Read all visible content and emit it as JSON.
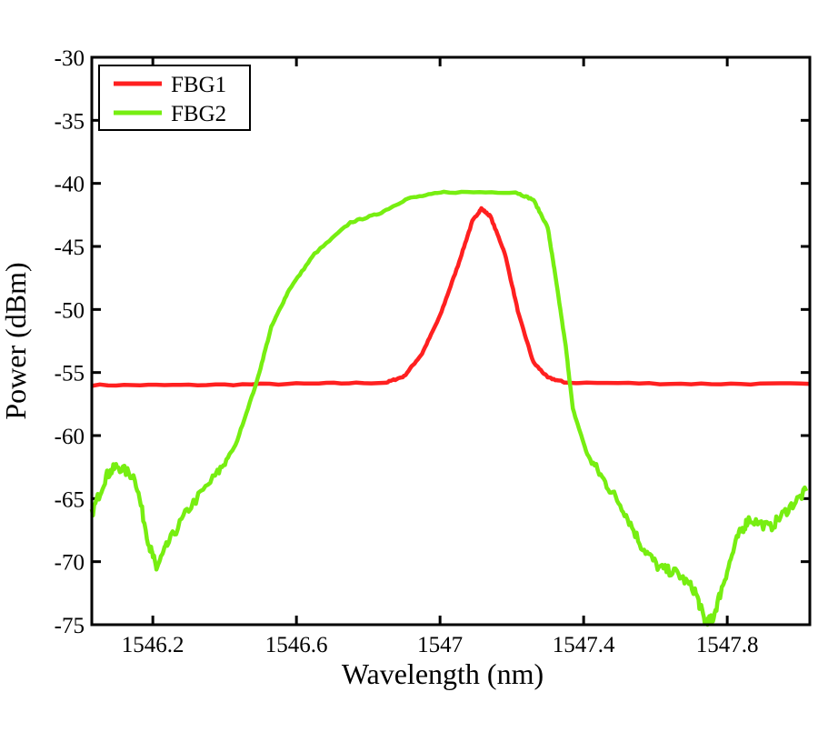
{
  "chart_data": {
    "type": "line",
    "title": "",
    "xlabel": "Wavelength (nm)",
    "ylabel": "Power (dBm)",
    "xlim": [
      1546.03,
      1548.03
    ],
    "ylim": [
      -75,
      -30
    ],
    "xticks": [
      1546.2,
      1546.6,
      1547,
      1547.4,
      1547.8
    ],
    "xtick_labels": [
      "1546.2",
      "1546.6",
      "1547",
      "1547.4",
      "1547.8"
    ],
    "yticks": [
      -30,
      -35,
      -40,
      -45,
      -50,
      -55,
      -60,
      -65,
      -70,
      -75
    ],
    "ytick_labels": [
      "-30",
      "-35",
      "-40",
      "-45",
      "-50",
      "-55",
      "-60",
      "-65",
      "-70",
      "-75"
    ],
    "grid": false,
    "legend_position": "top-left",
    "series": [
      {
        "name": "FBG1",
        "color": "#ff2020",
        "x": [
          1546.03,
          1546.3,
          1546.6,
          1546.85,
          1546.9,
          1546.95,
          1547.0,
          1547.05,
          1547.09,
          1547.115,
          1547.14,
          1547.18,
          1547.22,
          1547.26,
          1547.3,
          1547.35,
          1547.7,
          1548.03
        ],
        "y": [
          -56.0,
          -56.0,
          -55.9,
          -55.8,
          -55.3,
          -53.5,
          -50.5,
          -46.5,
          -43.0,
          -42.0,
          -42.6,
          -45.5,
          -50.5,
          -54.2,
          -55.4,
          -55.8,
          -55.9,
          -55.9
        ]
      },
      {
        "name": "FBG2",
        "color": "#77ee11",
        "x": [
          1546.03,
          1546.07,
          1546.1,
          1546.15,
          1546.19,
          1546.21,
          1546.24,
          1546.3,
          1546.38,
          1546.43,
          1546.49,
          1546.53,
          1546.58,
          1546.65,
          1546.75,
          1546.83,
          1546.91,
          1547.01,
          1547.21,
          1547.26,
          1547.3,
          1547.32,
          1547.35,
          1547.37,
          1547.41,
          1547.46,
          1547.51,
          1547.56,
          1547.61,
          1547.66,
          1547.71,
          1547.74,
          1547.76,
          1547.79,
          1547.83,
          1547.86,
          1547.92,
          1547.97,
          1548.02
        ],
        "y": [
          -66.2,
          -63.2,
          -62.4,
          -63.3,
          -68.7,
          -70.5,
          -68.7,
          -65.8,
          -63.0,
          -60.8,
          -55.7,
          -51.4,
          -48.4,
          -45.6,
          -43.1,
          -42.4,
          -41.2,
          -40.7,
          -40.7,
          -41.3,
          -43.5,
          -47.1,
          -52.9,
          -57.9,
          -61.5,
          -63.7,
          -65.8,
          -68.7,
          -70.5,
          -70.9,
          -72.3,
          -74.9,
          -74.5,
          -71.6,
          -68.0,
          -66.6,
          -67.3,
          -65.8,
          -64.4
        ]
      }
    ]
  }
}
